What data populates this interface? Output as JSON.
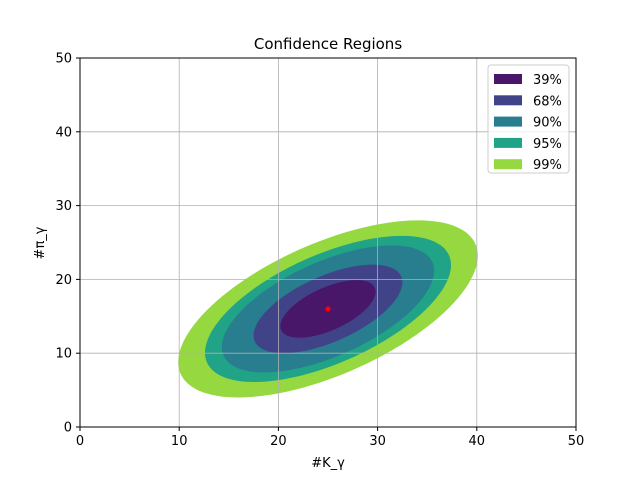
{
  "chart_data": {
    "type": "contour",
    "title": "Confidence Regions",
    "xlabel": "#K_γ",
    "ylabel": "#π_γ",
    "xlim": [
      0,
      50
    ],
    "ylim": [
      0,
      50
    ],
    "xticks": [
      0,
      10,
      20,
      30,
      40,
      50
    ],
    "yticks": [
      0,
      10,
      20,
      30,
      40,
      50
    ],
    "grid": true,
    "legend_position": "top-right",
    "center": {
      "x": 25,
      "y": 16,
      "color": "#ff0000"
    },
    "regions": [
      {
        "name": "99%",
        "color": "#95d840",
        "x_range": [
          9.9,
          40.1
        ],
        "y_range": [
          4.0,
          28.0
        ]
      },
      {
        "name": "95%",
        "color": "#20a386",
        "x_range": [
          12.6,
          37.4
        ],
        "y_range": [
          6.1,
          25.9
        ]
      },
      {
        "name": "90%",
        "color": "#287d8e",
        "x_range": [
          14.3,
          35.7
        ],
        "y_range": [
          7.4,
          24.6
        ]
      },
      {
        "name": "68%",
        "color": "#404387",
        "x_range": [
          17.5,
          32.5
        ],
        "y_range": [
          10.0,
          22.0
        ]
      },
      {
        "name": "39%",
        "color": "#481769",
        "x_range": [
          20.2,
          29.8
        ],
        "y_range": [
          12.1,
          19.9
        ]
      }
    ],
    "legend_order": [
      "39%",
      "68%",
      "90%",
      "95%",
      "99%"
    ]
  }
}
